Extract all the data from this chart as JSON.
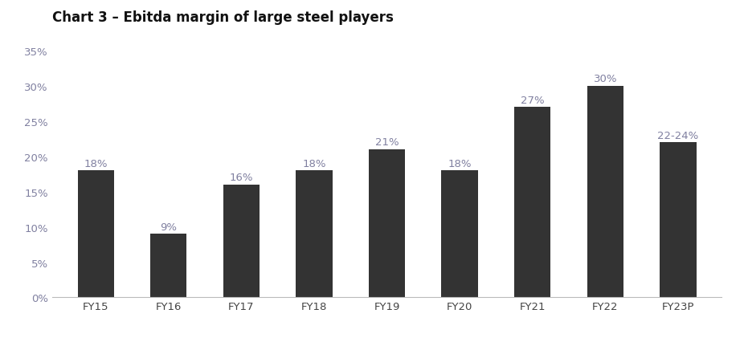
{
  "title": "Chart 3 – Ebitda margin of large steel players",
  "categories": [
    "FY15",
    "FY16",
    "FY17",
    "FY18",
    "FY19",
    "FY20",
    "FY21",
    "FY22",
    "FY23P"
  ],
  "values": [
    18,
    9,
    16,
    18,
    21,
    18,
    27,
    30,
    22
  ],
  "labels": [
    "18%",
    "9%",
    "16%",
    "18%",
    "21%",
    "18%",
    "27%",
    "30%",
    "22-24%"
  ],
  "bar_color": "#333333",
  "background_color": "#ffffff",
  "ylim": [
    0,
    35
  ],
  "yticks": [
    0,
    5,
    10,
    15,
    20,
    25,
    30,
    35
  ],
  "label_color": "#8080a0",
  "tick_color": "#8080a0",
  "title_fontsize": 12,
  "label_fontsize": 9.5,
  "tick_fontsize": 9.5,
  "bar_width": 0.5
}
